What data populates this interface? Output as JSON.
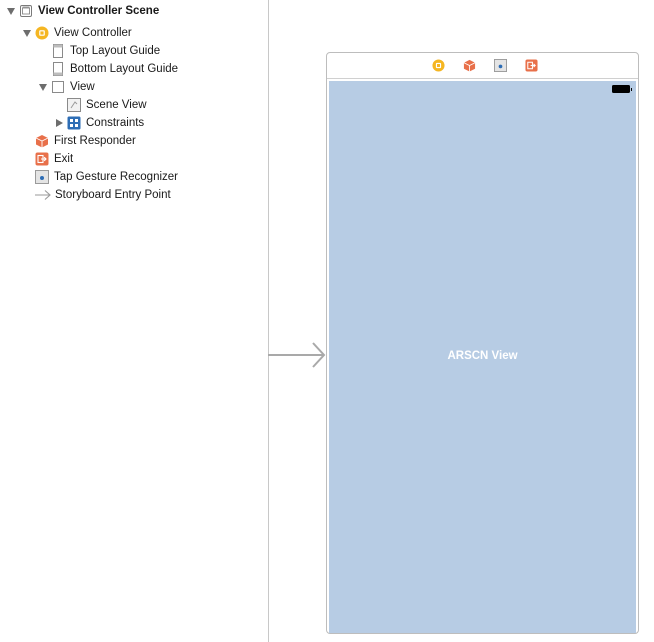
{
  "outline": {
    "scene": {
      "label": "View Controller Scene",
      "icon": "scene-icon"
    },
    "items": [
      {
        "label": "View Controller",
        "icon": "view-controller-icon"
      },
      {
        "label": "Top Layout Guide",
        "icon": "layout-guide-icon"
      },
      {
        "label": "Bottom Layout Guide",
        "icon": "layout-guide-icon"
      },
      {
        "label": "View",
        "icon": "view-icon"
      },
      {
        "label": "Scene View",
        "icon": "scene-view-icon"
      },
      {
        "label": "Constraints",
        "icon": "constraints-icon"
      },
      {
        "label": "First Responder",
        "icon": "first-responder-icon"
      },
      {
        "label": "Exit",
        "icon": "exit-icon"
      },
      {
        "label": "Tap Gesture Recognizer",
        "icon": "tap-gesture-icon"
      },
      {
        "label": "Storyboard Entry Point",
        "icon": "entry-point-icon"
      }
    ]
  },
  "canvas": {
    "scene_view_label": "ARSCN View",
    "dock_icons": [
      "view-controller-icon",
      "first-responder-icon",
      "tap-gesture-icon",
      "exit-icon"
    ]
  },
  "colors": {
    "scene_view_bg": "#b7cce4",
    "view_controller_icon": "#f5b622",
    "first_responder_icon": "#e8704a",
    "exit_icon": "#e8704a",
    "constraints_icon": "#2d6db5"
  }
}
